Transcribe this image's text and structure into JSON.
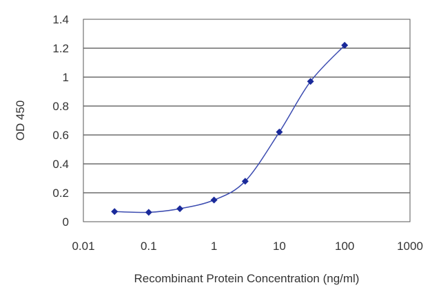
{
  "chart_data": {
    "type": "scatter",
    "xlabel": "Recombinant Protein Concentration (ng/ml)",
    "ylabel": "OD 450",
    "x_scale": "log",
    "xlim": [
      0.01,
      1000
    ],
    "ylim": [
      0,
      1.4
    ],
    "x_ticks": [
      "0.01",
      "0.1",
      "1",
      "10",
      "100",
      "1000"
    ],
    "y_ticks": [
      "0",
      "0.2",
      "0.4",
      "0.6",
      "0.8",
      "1",
      "1.2",
      "1.4"
    ],
    "grid": "horizontal",
    "legend": "none",
    "line_color": "#3b4bb0",
    "marker_color": "#1a2a9a",
    "series": [
      {
        "x": [
          0.03,
          0.1,
          0.3,
          1,
          3,
          10,
          30,
          100
        ],
        "y": [
          0.07,
          0.065,
          0.09,
          0.15,
          0.28,
          0.62,
          0.97,
          1.22
        ]
      }
    ]
  }
}
